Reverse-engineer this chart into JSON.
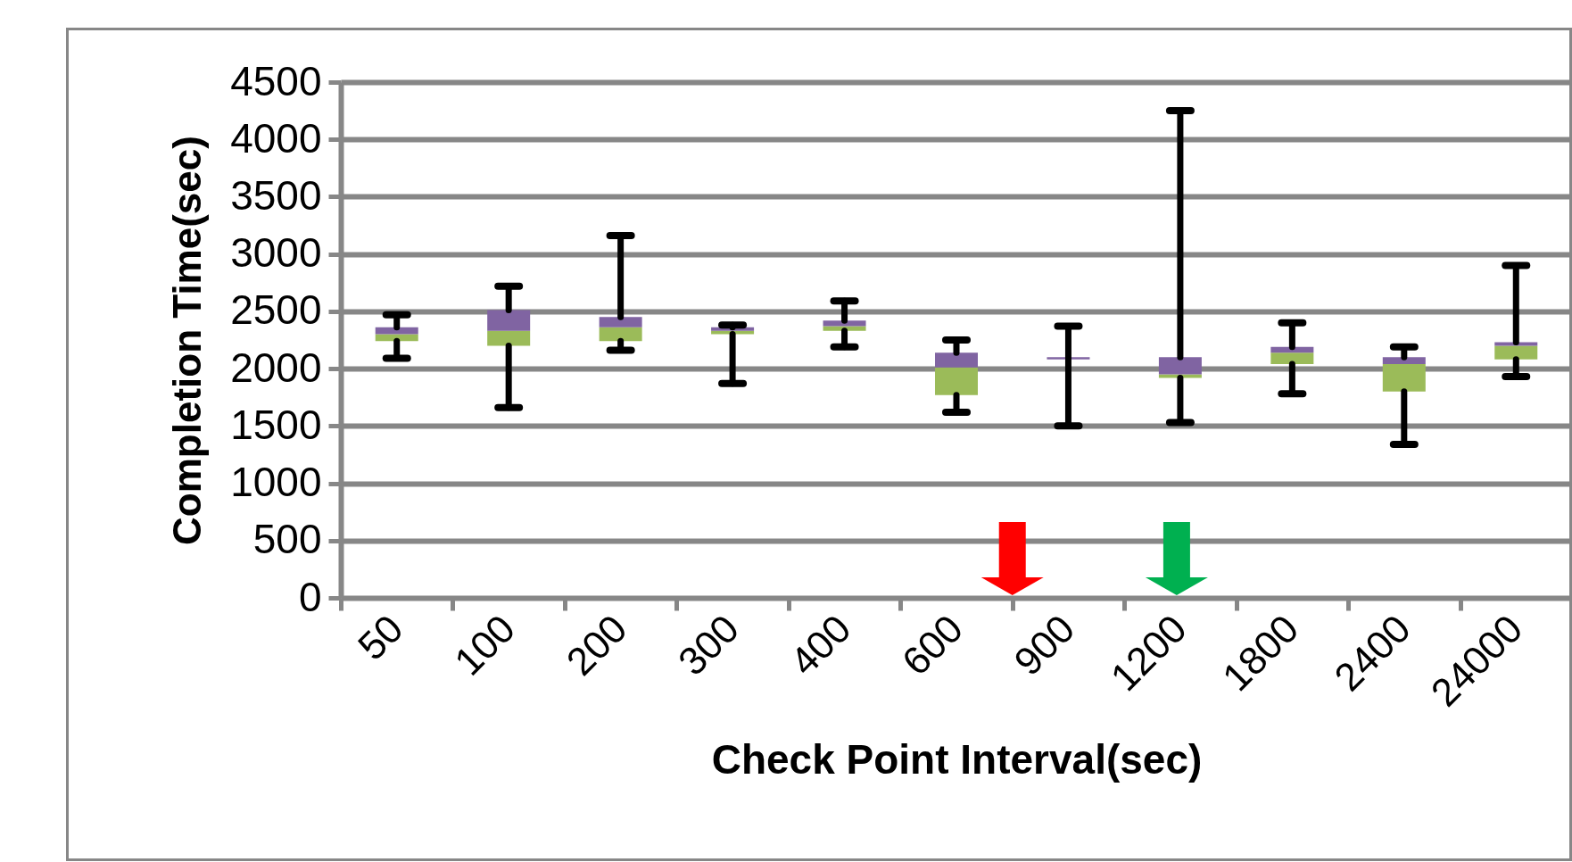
{
  "chart_data": {
    "type": "box",
    "xlabel": "Check Point Interval(sec)",
    "ylabel": "Completion Time(sec)",
    "categories": [
      "50",
      "100",
      "200",
      "300",
      "400",
      "600",
      "900",
      "1200",
      "1800",
      "2400",
      "24000"
    ],
    "colors": [
      [
        "#9bbb59",
        "#8064a2"
      ],
      [
        "#9bbb59",
        "#8064a2"
      ],
      [
        "#9bbb59",
        "#8064a2"
      ],
      [
        "#9bbb59",
        "#8064a2"
      ],
      [
        "#9bbb59",
        "#8064a2"
      ],
      [
        "#9bbb59",
        "#8064a2"
      ],
      [
        "#9bbb59",
        "#8064a2"
      ],
      [
        "#9bbb59",
        "#8064a2"
      ],
      [
        "#9bbb59",
        "#8064a2"
      ],
      [
        "#9bbb59",
        "#8064a2"
      ],
      [
        "#9bbb59",
        "#8064a2"
      ]
    ],
    "boxes": [
      {
        "low": 2090,
        "q1": 2240,
        "median": 2300,
        "q3": 2360,
        "high": 2470
      },
      {
        "low": 1660,
        "q1": 2200,
        "median": 2330,
        "q3": 2510,
        "high": 2720
      },
      {
        "low": 2160,
        "q1": 2240,
        "median": 2360,
        "q3": 2450,
        "high": 3160
      },
      {
        "low": 1870,
        "q1": 2300,
        "median": 2330,
        "q3": 2360,
        "high": 2380
      },
      {
        "low": 2190,
        "q1": 2330,
        "median": 2370,
        "q3": 2420,
        "high": 2590
      },
      {
        "low": 1620,
        "q1": 1770,
        "median": 2010,
        "q3": 2140,
        "high": 2250
      },
      {
        "low": 1500,
        "q1": 2080,
        "median": 2080,
        "q3": 2100,
        "high": 2370
      },
      {
        "low": 1530,
        "q1": 1920,
        "median": 1950,
        "q3": 2100,
        "high": 4250
      },
      {
        "low": 1780,
        "q1": 2040,
        "median": 2140,
        "q3": 2190,
        "high": 2400
      },
      {
        "low": 1340,
        "q1": 1800,
        "median": 2040,
        "q3": 2100,
        "high": 2190
      },
      {
        "low": 1930,
        "q1": 2080,
        "median": 2200,
        "q3": 2230,
        "high": 2900
      }
    ],
    "ylim": [
      0,
      4500
    ],
    "yticks": [
      0,
      500,
      1000,
      1500,
      2000,
      2500,
      3000,
      3500,
      4000,
      4500
    ],
    "grid": "y"
  }
}
